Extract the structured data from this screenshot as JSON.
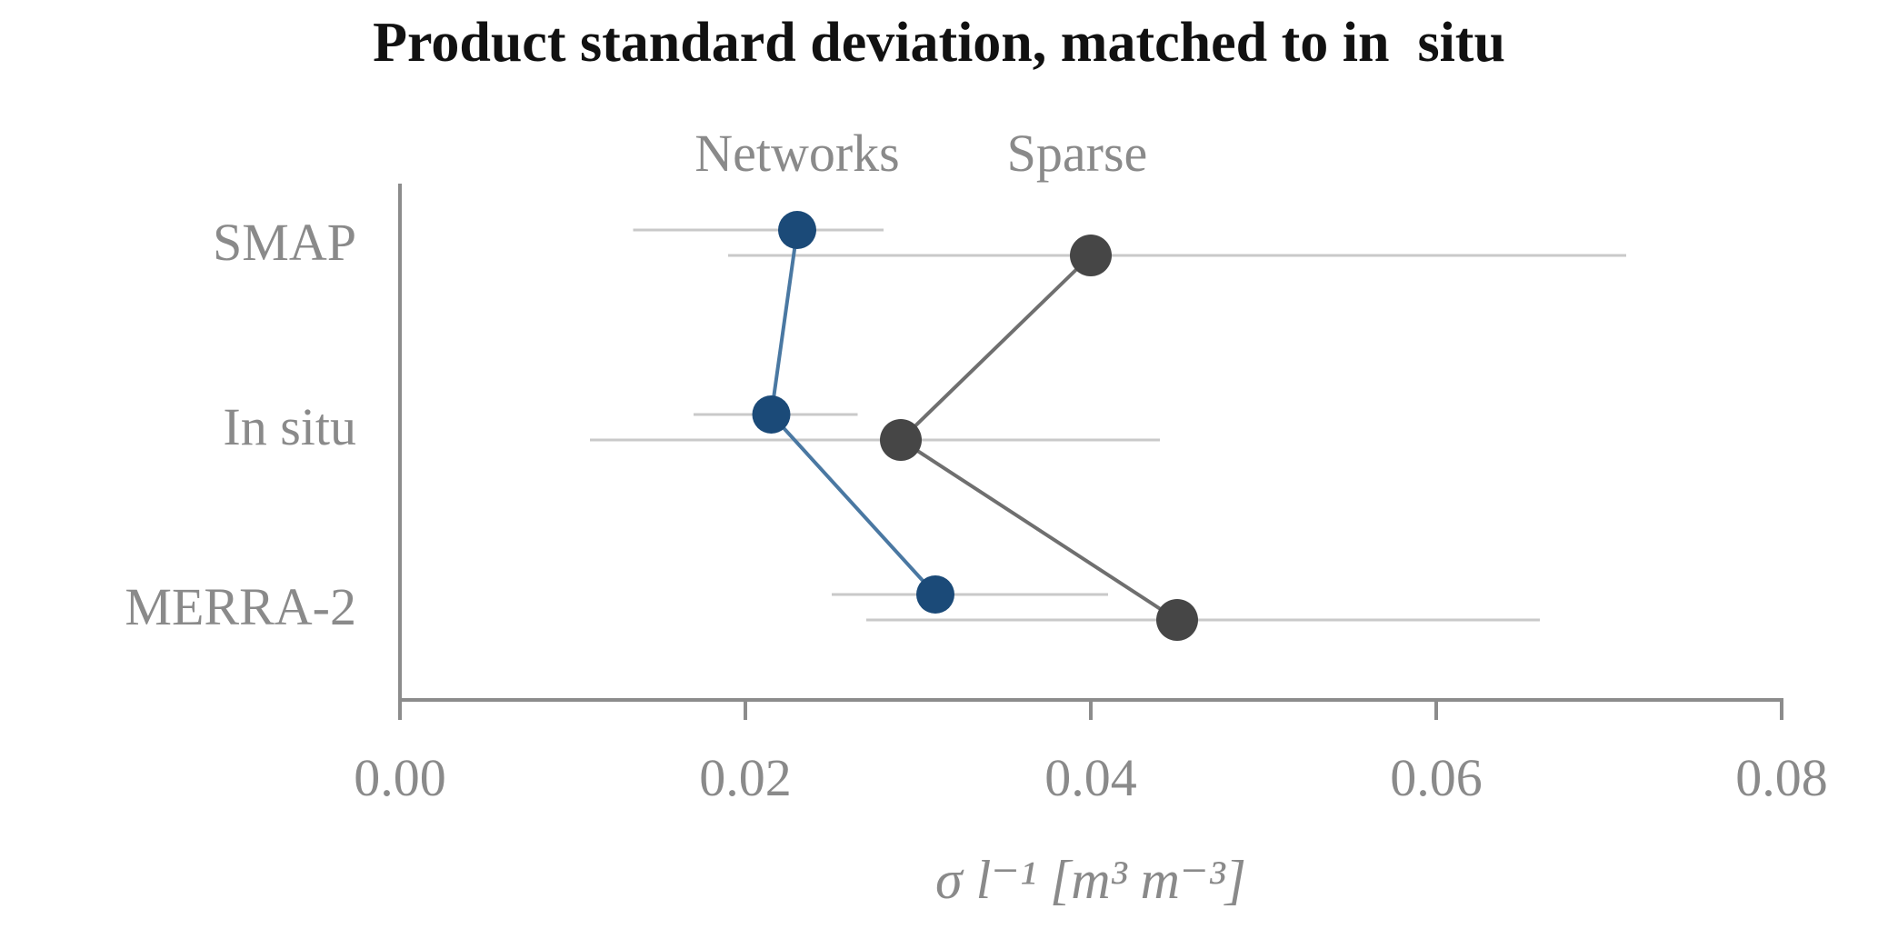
{
  "figure": {
    "background": "#ffffff"
  },
  "chart_data": {
    "type": "scatter",
    "subtype": "horizontal-dot-plot-with-error-bars",
    "title": "Product standard deviation, matched to in  situ",
    "categories": [
      "SMAP",
      "In situ",
      "MERRA-2"
    ],
    "series": [
      {
        "name": "Networks",
        "dot_color": "#1b4a78",
        "line_color": "#4a78a2",
        "values": [
          0.023,
          0.0215,
          0.031
        ],
        "error_low": [
          0.0135,
          0.017,
          0.025
        ],
        "error_high": [
          0.028,
          0.0265,
          0.041
        ]
      },
      {
        "name": "Sparse",
        "dot_color": "#464646",
        "line_color": "#6f6f6f",
        "values": [
          0.04,
          0.029,
          0.045
        ],
        "error_low": [
          0.019,
          0.011,
          0.027
        ],
        "error_high": [
          0.071,
          0.044,
          0.066
        ]
      }
    ],
    "xlabel": "σ l⁻¹ [m³ m⁻³]",
    "xlim": [
      0,
      0.08
    ],
    "xticks": [
      0,
      0.02,
      0.04,
      0.06,
      0.08
    ],
    "xtick_labels": [
      "0.00",
      "0.02",
      "0.04",
      "0.06",
      "0.08"
    ],
    "grid": false,
    "legend_position": "series labels above top-row points",
    "errorbar_color": "#c9c9c9",
    "axis_color": "#8c8c8c",
    "text_color": "#8a8a8a",
    "title_color": "#111111"
  }
}
